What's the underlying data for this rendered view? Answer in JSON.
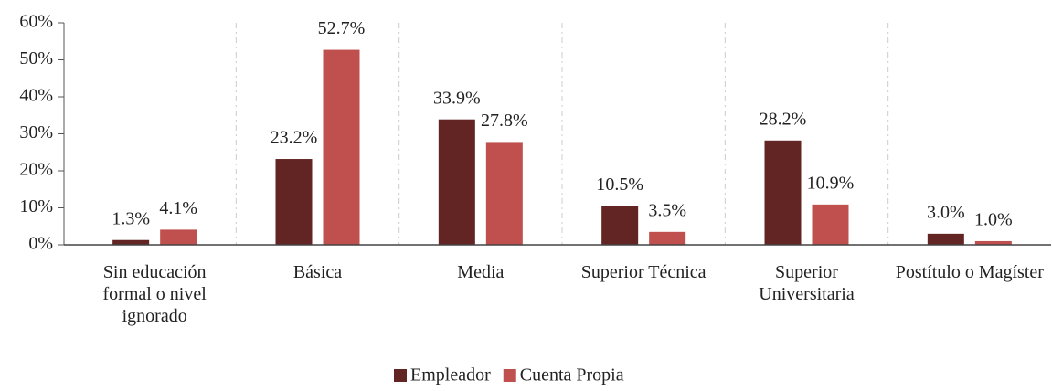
{
  "chart_data": {
    "type": "bar",
    "categories": [
      "Sin educación formal o nivel ignorado",
      "Básica",
      "Media",
      "Superior Técnica",
      "Superior Universitaria",
      "Postítulo o Magíster"
    ],
    "series": [
      {
        "name": "Empleador",
        "color": "#632523",
        "values": [
          1.3,
          23.2,
          33.9,
          10.5,
          28.2,
          3.0
        ],
        "value_labels": [
          "1.3%",
          "23.2%",
          "33.9%",
          "10.5%",
          "28.2%",
          "3.0%"
        ]
      },
      {
        "name": "Cuenta Propia",
        "color": "#c0504d",
        "values": [
          4.1,
          52.7,
          27.8,
          3.5,
          10.9,
          1.0
        ],
        "value_labels": [
          "4.1%",
          "52.7%",
          "27.8%",
          "3.5%",
          "10.9%",
          "1.0%"
        ]
      }
    ],
    "ylim": [
      0,
      60
    ],
    "yticks": [
      {
        "value": 0,
        "label": "0%"
      },
      {
        "value": 10,
        "label": "10%"
      },
      {
        "value": 20,
        "label": "20%"
      },
      {
        "value": 30,
        "label": "30%"
      },
      {
        "value": 40,
        "label": "40%"
      },
      {
        "value": 50,
        "label": "50%"
      },
      {
        "value": 60,
        "label": "60%"
      }
    ],
    "legend": "bottom"
  }
}
